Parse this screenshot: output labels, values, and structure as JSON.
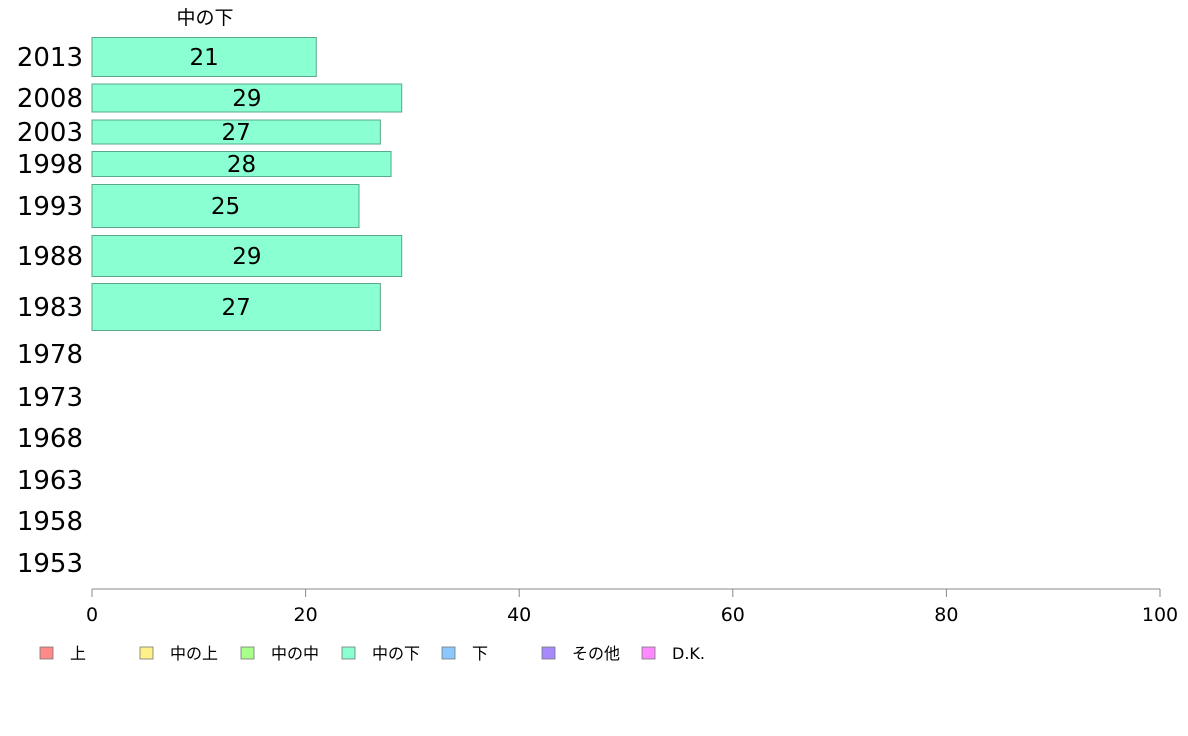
{
  "chart_data": {
    "type": "bar",
    "orientation": "horizontal",
    "series_label": "中の下",
    "categories": [
      "2013",
      "2008",
      "2003",
      "1998",
      "1993",
      "1988",
      "1983",
      "1978",
      "1973",
      "1968",
      "1963",
      "1958",
      "1953"
    ],
    "series": [
      {
        "name": "中の下",
        "color": "#8affd1",
        "values": [
          21,
          29,
          27,
          28,
          25,
          29,
          27,
          null,
          null,
          null,
          null,
          null,
          null
        ]
      }
    ],
    "xlim": [
      0,
      100
    ],
    "xticks": [
      0,
      20,
      40,
      60,
      80,
      100
    ],
    "grid": false,
    "legend_position": "bottom",
    "legend": [
      {
        "label": "上",
        "color": "#ff8a8a"
      },
      {
        "label": "中の上",
        "color": "#fff08a"
      },
      {
        "label": "中の中",
        "color": "#a8ff8a"
      },
      {
        "label": "中の下",
        "color": "#8affd1"
      },
      {
        "label": "下",
        "color": "#8ac8ff"
      },
      {
        "label": "その他",
        "color": "#a88aff"
      },
      {
        "label": "D.K.",
        "color": "#ff8aff"
      }
    ]
  }
}
